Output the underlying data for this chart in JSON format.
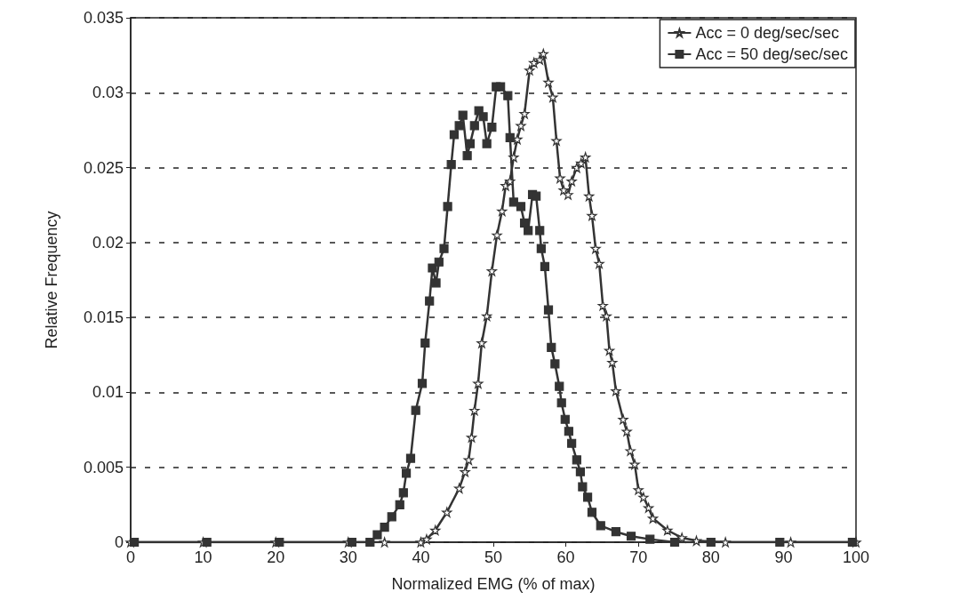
{
  "chart_data": {
    "type": "line",
    "xlabel": "Normalized EMG (% of max)",
    "ylabel": "Relative Frequency",
    "xlim": [
      0,
      100
    ],
    "xticks": [
      0,
      10,
      20,
      30,
      40,
      50,
      60,
      70,
      80,
      90,
      100
    ],
    "ylim": [
      0,
      0.035
    ],
    "yticks": [
      0,
      0.005,
      0.01,
      0.015,
      0.02,
      0.025,
      0.03,
      0.035
    ],
    "grid": "y",
    "legend": "top right",
    "line_style": "solid",
    "series": [
      {
        "name": "Acc = 0 deg/sec/sec",
        "color": "#333333",
        "marker": "star",
        "x": [
          0,
          10,
          20,
          30,
          35,
          40,
          40.8,
          42,
          43.6,
          45.3,
          46.1,
          46.6,
          47,
          47.4,
          47.9,
          48.4,
          49.1,
          49.8,
          50.5,
          51.2,
          51.7,
          52.3,
          52.8,
          53.3,
          53.8,
          54.3,
          55,
          55.6,
          56.4,
          56.9,
          57.6,
          58.2,
          58.7,
          59.2,
          59.7,
          60.3,
          60.8,
          61.5,
          62.1,
          62.7,
          63.2,
          63.6,
          64.1,
          64.6,
          65.1,
          65.6,
          66,
          66.4,
          66.9,
          67.9,
          68.4,
          68.9,
          69.5,
          70,
          70.7,
          71.4,
          72,
          74,
          76,
          78,
          82,
          91,
          100
        ],
        "values": [
          0,
          0,
          0,
          0,
          0,
          0,
          0.0002,
          0.0008,
          0.002,
          0.0036,
          0.0047,
          0.0055,
          0.007,
          0.0088,
          0.0106,
          0.0133,
          0.0151,
          0.0181,
          0.0205,
          0.0221,
          0.0238,
          0.0241,
          0.0257,
          0.0269,
          0.0278,
          0.0286,
          0.0315,
          0.032,
          0.0322,
          0.0326,
          0.0307,
          0.0297,
          0.0268,
          0.0243,
          0.0235,
          0.0232,
          0.0241,
          0.025,
          0.0253,
          0.0257,
          0.0231,
          0.0218,
          0.0196,
          0.0186,
          0.0158,
          0.0151,
          0.0128,
          0.012,
          0.0101,
          0.0082,
          0.0074,
          0.0061,
          0.0052,
          0.0035,
          0.003,
          0.0023,
          0.0016,
          0.0008,
          0.0003,
          0.0001,
          0,
          0,
          0
        ]
      },
      {
        "name": "Acc = 50 deg/sec/sec",
        "color": "#333333",
        "marker": "square",
        "x": [
          0.5,
          10.5,
          20.5,
          30.5,
          33,
          34,
          35,
          36,
          37.1,
          37.6,
          38,
          38.6,
          39.3,
          40.2,
          40.6,
          41.2,
          41.6,
          42.1,
          42.5,
          43.2,
          43.7,
          44.2,
          44.6,
          45.3,
          45.8,
          46.4,
          46.8,
          47.4,
          48,
          48.6,
          49.1,
          49.8,
          50.4,
          51,
          52,
          52.3,
          52.8,
          53.8,
          54.3,
          54.8,
          55.4,
          55.9,
          56.4,
          56.6,
          57.1,
          57.6,
          58,
          58.5,
          59.1,
          59.4,
          59.9,
          60.4,
          60.8,
          61.5,
          62,
          62.3,
          63,
          63.6,
          64.8,
          66.9,
          69,
          71.6,
          75,
          80,
          89.5,
          99.5
        ],
        "values": [
          0,
          0,
          0,
          0,
          0,
          0.0005,
          0.001,
          0.0017,
          0.0025,
          0.0033,
          0.0046,
          0.0056,
          0.0088,
          0.0106,
          0.0133,
          0.0161,
          0.0183,
          0.0173,
          0.0187,
          0.0196,
          0.0224,
          0.0252,
          0.0272,
          0.0278,
          0.0285,
          0.0258,
          0.0266,
          0.0278,
          0.0288,
          0.0284,
          0.0266,
          0.0277,
          0.0304,
          0.0304,
          0.0298,
          0.027,
          0.0227,
          0.0224,
          0.0213,
          0.0208,
          0.0232,
          0.0231,
          0.0208,
          0.0196,
          0.0184,
          0.0155,
          0.013,
          0.0119,
          0.0104,
          0.0093,
          0.0082,
          0.0074,
          0.0066,
          0.0055,
          0.0047,
          0.0037,
          0.003,
          0.002,
          0.0011,
          0.0007,
          0.0004,
          0.0002,
          0,
          0,
          0,
          0
        ]
      }
    ]
  }
}
